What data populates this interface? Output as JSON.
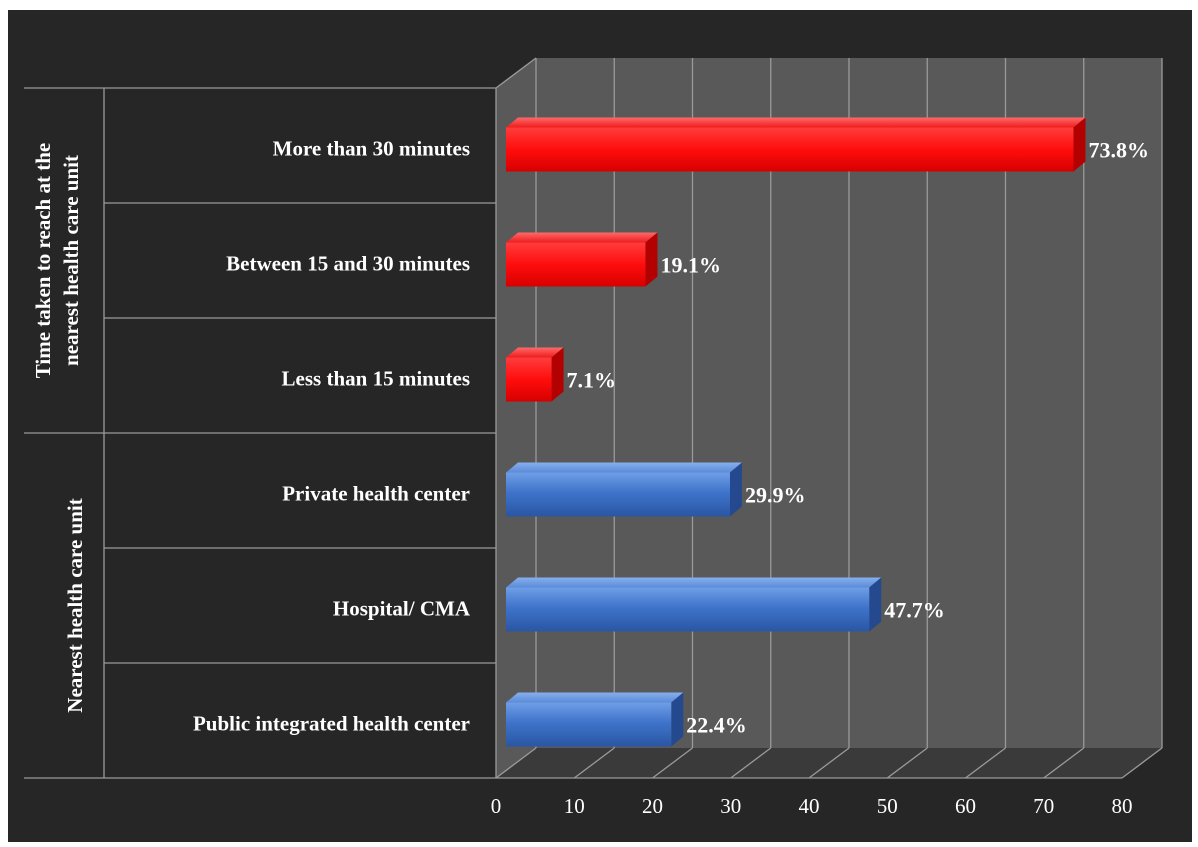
{
  "chart_data": {
    "type": "bar",
    "orientation": "horizontal",
    "categories": [
      "Public integrated health center",
      "Hospital/ CMA",
      "Private health center",
      "Less  than 15 minutes",
      "Between  15 and 30 minutes",
      "More than 30 minutes"
    ],
    "values": [
      22.4,
      47.7,
      29.9,
      7.1,
      19.1,
      73.8
    ],
    "data_labels": [
      "22.4%",
      "47.7%",
      "29.9%",
      "7.1%",
      "19.1%",
      "73.8%"
    ],
    "groups": [
      {
        "label": "Nearest health care unit",
        "categories": [
          0,
          1,
          2
        ]
      },
      {
        "label_lines": [
          "Time taken to reach at the",
          "nearest health care unit"
        ],
        "categories": [
          3,
          4,
          5
        ]
      }
    ],
    "colors": [
      "#3d72c8",
      "#3d72c8",
      "#3d72c8",
      "#ff1a1a",
      "#ff1a1a",
      "#ff1a1a"
    ],
    "xlim": [
      0,
      80
    ],
    "xticks": [
      0,
      10,
      20,
      30,
      40,
      50,
      60,
      70,
      80
    ],
    "grid": true,
    "style": "3d",
    "background": "#262626",
    "wall_color": "#595959"
  }
}
